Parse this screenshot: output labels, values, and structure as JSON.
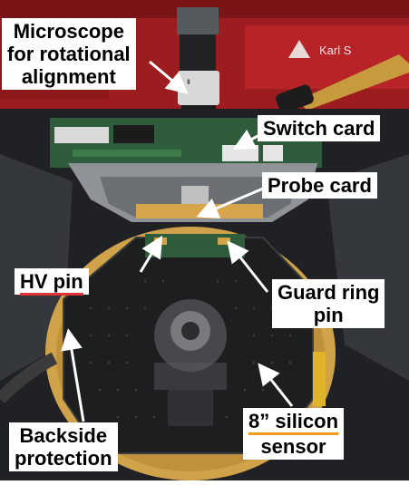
{
  "labels": {
    "microscope": [
      "Microscope",
      "for rotational",
      "alignment"
    ],
    "switch_card": "Switch card",
    "probe_card": "Probe card",
    "hv_pin": "HV pin",
    "guard_ring_pin": [
      "Guard ring",
      "pin"
    ],
    "backside_protection": [
      "Backside",
      "protection"
    ],
    "silicon_sensor": [
      "8” silicon",
      "sensor"
    ],
    "brand": "Karl S"
  },
  "colors": {
    "hv_underline": "#e0323a",
    "sensor_underline": "#f39a1e",
    "arrow": "#ffffff"
  }
}
